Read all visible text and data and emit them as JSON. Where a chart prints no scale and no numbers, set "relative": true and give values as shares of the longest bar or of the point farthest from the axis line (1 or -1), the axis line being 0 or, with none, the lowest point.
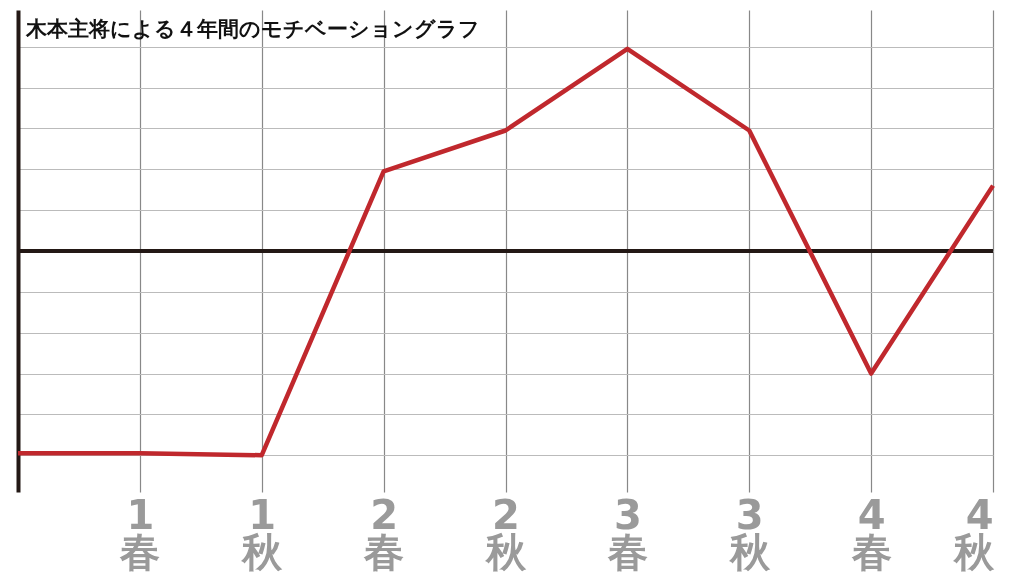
{
  "chart_data": {
    "type": "line",
    "title": "木本主将による４年間のモチベーショングラフ",
    "relative": true,
    "categories": [
      null,
      "1\n春",
      "1\n秋",
      "2\n春",
      "2\n秋",
      "3\n春",
      "3\n秋",
      "4\n春",
      "4\n秋"
    ],
    "series": [
      {
        "color": "#c0282d",
        "values": [
          -0.99,
          -0.99,
          -1,
          0.39,
          0.59,
          0.99,
          0.59,
          -0.6,
          0.32
        ]
      }
    ],
    "grid": true,
    "marker": "none",
    "line_style": "solid"
  }
}
